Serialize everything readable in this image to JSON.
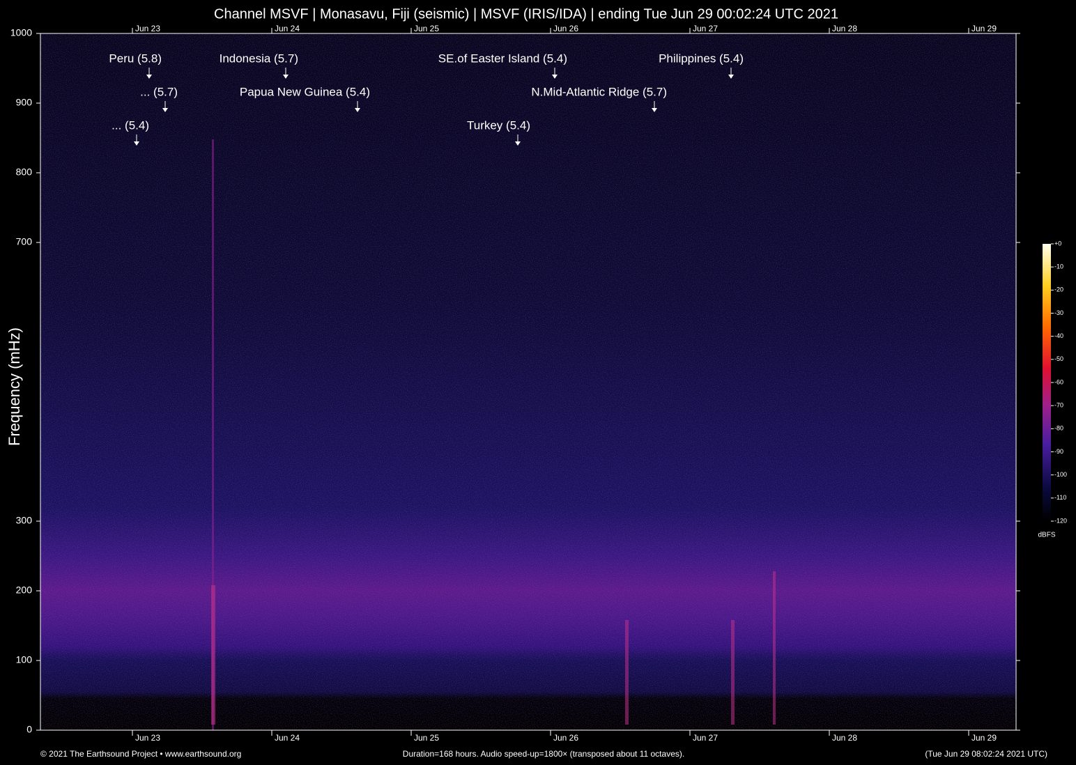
{
  "chart_data": {
    "type": "spectrogram",
    "title": "Channel MSVF | Monasavu, Fiji (seismic) | MSVF (IRIS/IDA) | ending Tue Jun 29 00:02:24 UTC 2021",
    "y_label": "Frequency (mHz)",
    "xlim": [
      0,
      168
    ],
    "xticks": [
      {
        "value": 15.84,
        "label": "Jun 23"
      },
      {
        "value": 39.84,
        "label": "Jun 24"
      },
      {
        "value": 63.84,
        "label": "Jun 25"
      },
      {
        "value": 87.84,
        "label": "Jun 26"
      },
      {
        "value": 111.84,
        "label": "Jun 27"
      },
      {
        "value": 135.84,
        "label": "Jun 28"
      },
      {
        "value": 159.84,
        "label": "Jun 29"
      }
    ],
    "ylim": [
      0,
      1000
    ],
    "yticks": [
      0,
      100,
      200,
      300,
      700,
      800,
      900,
      1000
    ],
    "annotations": [
      {
        "text": "Peru (5.8)",
        "x": 18.72,
        "y": 935
      },
      {
        "text": "... (5.7)",
        "x": 21.48,
        "y": 887
      },
      {
        "text": "... (5.4)",
        "x": 16.56,
        "y": 839
      },
      {
        "text": "Indonesia (5.7)",
        "x": 42.24,
        "y": 935
      },
      {
        "text": "Papua New Guinea (5.4)",
        "x": 54.6,
        "y": 887
      },
      {
        "text": "SE.of Easter Island (5.4)",
        "x": 88.56,
        "y": 935
      },
      {
        "text": "Turkey (5.4)",
        "x": 82.2,
        "y": 839
      },
      {
        "text": "N.Mid-Atlantic Ridge (5.7)",
        "x": 105.72,
        "y": 887
      },
      {
        "text": "Philippines (5.4)",
        "x": 118.92,
        "y": 935
      }
    ],
    "colorbar": {
      "label": "dBFS",
      "lim": [
        -120,
        0
      ],
      "ticks": [
        {
          "value": 0,
          "label": "+0"
        },
        -10,
        -20,
        -30,
        -40,
        -50,
        -60,
        -70,
        -80,
        -90,
        -100,
        -110,
        -120
      ]
    },
    "footer_left": "© 2021 The Earthsound Project • www.earthsound.org",
    "footer_center": "Duration=168 hours. Audio speed-up=1800× (transposed about 11 octaves).",
    "footer_right": "(Tue Jun 29 08:02:24 2021 UTC)"
  }
}
